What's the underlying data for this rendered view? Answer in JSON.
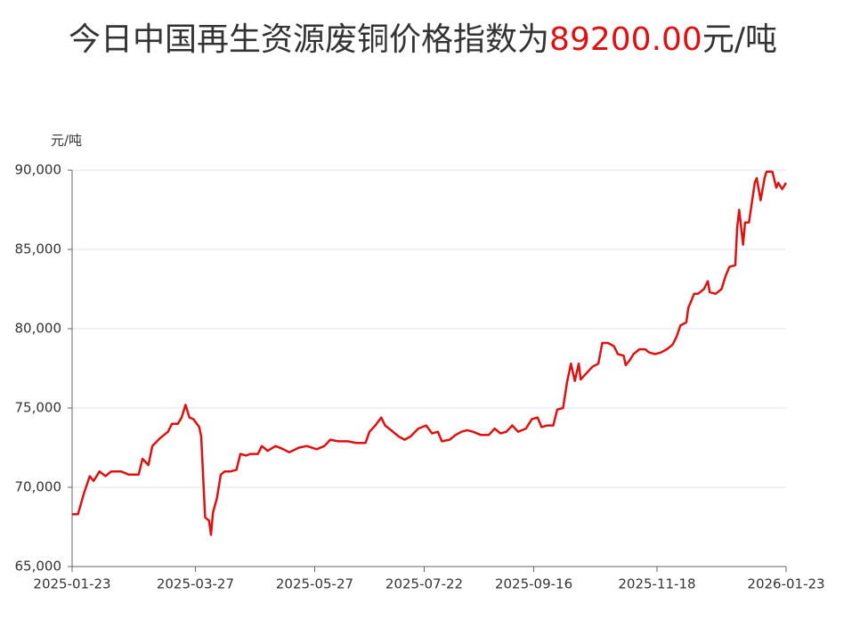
{
  "chart_data": {
    "type": "line",
    "title": "今日中国再生资源废铜价格指数为",
    "title_value": "89200.00",
    "title_unit": "元/吨",
    "y_label": "元/吨",
    "x": [
      "2025-01-23",
      "2025-01-26",
      "2025-01-29",
      "2025-02-01",
      "2025-02-03",
      "2025-02-06",
      "2025-02-09",
      "2025-02-12",
      "2025-02-17",
      "2025-02-21",
      "2025-02-26",
      "2025-02-28",
      "2025-03-03",
      "2025-03-05",
      "2025-03-09",
      "2025-03-13",
      "2025-03-15",
      "2025-03-18",
      "2025-03-20",
      "2025-03-22",
      "2025-03-24",
      "2025-03-26",
      "2025-03-29",
      "2025-03-30",
      "2025-04-01",
      "2025-04-03",
      "2025-04-04",
      "2025-04-05",
      "2025-04-07",
      "2025-04-09",
      "2025-04-11",
      "2025-04-14",
      "2025-04-17",
      "2025-04-19",
      "2025-04-22",
      "2025-04-24",
      "2025-04-28",
      "2025-04-30",
      "2025-05-03",
      "2025-05-07",
      "2025-05-11",
      "2025-05-14",
      "2025-05-19",
      "2025-05-23",
      "2025-05-28",
      "2025-06-01",
      "2025-06-04",
      "2025-06-08",
      "2025-06-13",
      "2025-06-17",
      "2025-06-22",
      "2025-06-24",
      "2025-06-27",
      "2025-06-30",
      "2025-07-02",
      "2025-07-05",
      "2025-07-09",
      "2025-07-12",
      "2025-07-15",
      "2025-07-19",
      "2025-07-23",
      "2025-07-26",
      "2025-07-29",
      "2025-07-31",
      "2025-08-04",
      "2025-08-07",
      "2025-08-10",
      "2025-08-13",
      "2025-08-16",
      "2025-08-20",
      "2025-08-24",
      "2025-08-27",
      "2025-08-30",
      "2025-09-02",
      "2025-09-05",
      "2025-09-08",
      "2025-09-12",
      "2025-09-15",
      "2025-09-18",
      "2025-09-20",
      "2025-09-23",
      "2025-09-26",
      "2025-09-28",
      "2025-10-01",
      "2025-10-03",
      "2025-10-05",
      "2025-10-07",
      "2025-10-09",
      "2025-10-10",
      "2025-10-13",
      "2025-10-16",
      "2025-10-19",
      "2025-10-21",
      "2025-10-24",
      "2025-10-27",
      "2025-10-29",
      "2025-11-01",
      "2025-11-02",
      "2025-11-04",
      "2025-11-06",
      "2025-11-09",
      "2025-11-12",
      "2025-11-14",
      "2025-11-17",
      "2025-11-20",
      "2025-11-23",
      "2025-11-26",
      "2025-11-28",
      "2025-11-30",
      "2025-12-03",
      "2025-12-04",
      "2025-12-07",
      "2025-12-09",
      "2025-12-12",
      "2025-12-14",
      "2025-12-15",
      "2025-12-18",
      "2025-12-21",
      "2025-12-23",
      "2025-12-25",
      "2025-12-28",
      "2025-12-29",
      "2025-12-30",
      "2026-01-01",
      "2026-01-02",
      "2026-01-04",
      "2026-01-07",
      "2026-01-08",
      "2026-01-10",
      "2026-01-12",
      "2026-01-13",
      "2026-01-16",
      "2026-01-18",
      "2026-01-19",
      "2026-01-21",
      "2026-01-23"
    ],
    "series": [
      {
        "color": "#e01010",
        "values": [
          68300,
          68300,
          69600,
          70700,
          70400,
          71000,
          70700,
          71000,
          71000,
          70800,
          70800,
          71800,
          71400,
          72600,
          73100,
          73500,
          74000,
          74000,
          74400,
          75200,
          74400,
          74300,
          73800,
          73200,
          68100,
          67900,
          67000,
          68400,
          69300,
          70800,
          71000,
          71000,
          71100,
          72100,
          72000,
          72100,
          72100,
          72600,
          72300,
          72600,
          72400,
          72200,
          72500,
          72600,
          72400,
          72600,
          73000,
          72900,
          72900,
          72800,
          72800,
          73500,
          73900,
          74400,
          73900,
          73600,
          73200,
          73000,
          73200,
          73700,
          73900,
          73400,
          73500,
          72900,
          73000,
          73300,
          73500,
          73600,
          73500,
          73300,
          73300,
          73700,
          73400,
          73500,
          73900,
          73500,
          73700,
          74300,
          74400,
          73800,
          73900,
          73900,
          74900,
          75000,
          76600,
          77800,
          76700,
          77800,
          76800,
          77200,
          77600,
          77800,
          79100,
          79100,
          78900,
          78400,
          78300,
          77700,
          78000,
          78400,
          78700,
          78700,
          78500,
          78400,
          78500,
          78700,
          79000,
          79500,
          80200,
          80400,
          81300,
          82200,
          82200,
          82500,
          83000,
          82300,
          82200,
          82500,
          83300,
          83900,
          84000,
          86400,
          87500,
          85300,
          86700,
          86700,
          89200,
          89500,
          88100,
          89500,
          89900,
          89900,
          88900,
          89200,
          88800,
          89200
        ]
      }
    ],
    "xlim": [
      "2025-01-23",
      "2026-01-23"
    ],
    "xticks": [
      "2025-01-23",
      "2025-03-27",
      "2025-05-27",
      "2025-07-22",
      "2025-09-16",
      "2025-11-18",
      "2026-01-23"
    ],
    "ylim": [
      65000,
      90000
    ],
    "yticks": [
      {
        "value": 65000,
        "label": "65,000"
      },
      {
        "value": 70000,
        "label": "70,000"
      },
      {
        "value": 75000,
        "label": "75,000"
      },
      {
        "value": 80000,
        "label": "80,000"
      },
      {
        "value": 85000,
        "label": "85,000"
      },
      {
        "value": 90000,
        "label": "90,000"
      }
    ],
    "grid": true
  }
}
